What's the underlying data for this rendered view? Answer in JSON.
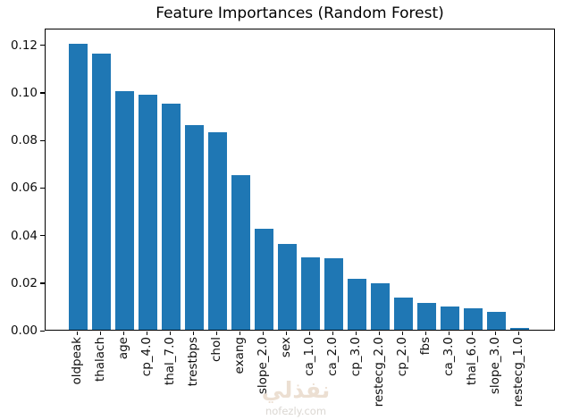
{
  "title": "Feature Importances (Random Forest)",
  "watermark": {
    "logo": "نفذلي",
    "url": "nofezly.com"
  },
  "colors": {
    "bar": "#1f77b4",
    "axis": "#000000",
    "background": "#ffffff",
    "watermark_logo": "#ecdfd2",
    "watermark_url": "#dbd7d2"
  },
  "chart_data": {
    "type": "bar",
    "title": "Feature Importances (Random Forest)",
    "xlabel": "",
    "ylabel": "",
    "categories": [
      "oldpeak",
      "thalach",
      "age",
      "cp_4.0",
      "thal_7.0",
      "trestbps",
      "chol",
      "exang",
      "slope_2.0",
      "sex",
      "ca_1.0",
      "ca_2.0",
      "cp_3.0",
      "restecg_2.0",
      "cp_2.0",
      "fbs",
      "ca_3.0",
      "thal_6.0",
      "slope_3.0",
      "restecg_1.0"
    ],
    "values": [
      0.121,
      0.1169,
      0.101,
      0.0994,
      0.0957,
      0.0864,
      0.0834,
      0.0653,
      0.0426,
      0.0363,
      0.0307,
      0.0303,
      0.0216,
      0.0195,
      0.0135,
      0.0115,
      0.01,
      0.009,
      0.0076,
      0.0006
    ],
    "yticks": [
      0,
      0.02,
      0.04,
      0.06,
      0.08,
      0.1,
      0.12
    ],
    "ylim": [
      0,
      0.127
    ],
    "grid": false,
    "legend": null,
    "bar_color": "#1f77b4",
    "x_tick_label_rotation": 90
  }
}
